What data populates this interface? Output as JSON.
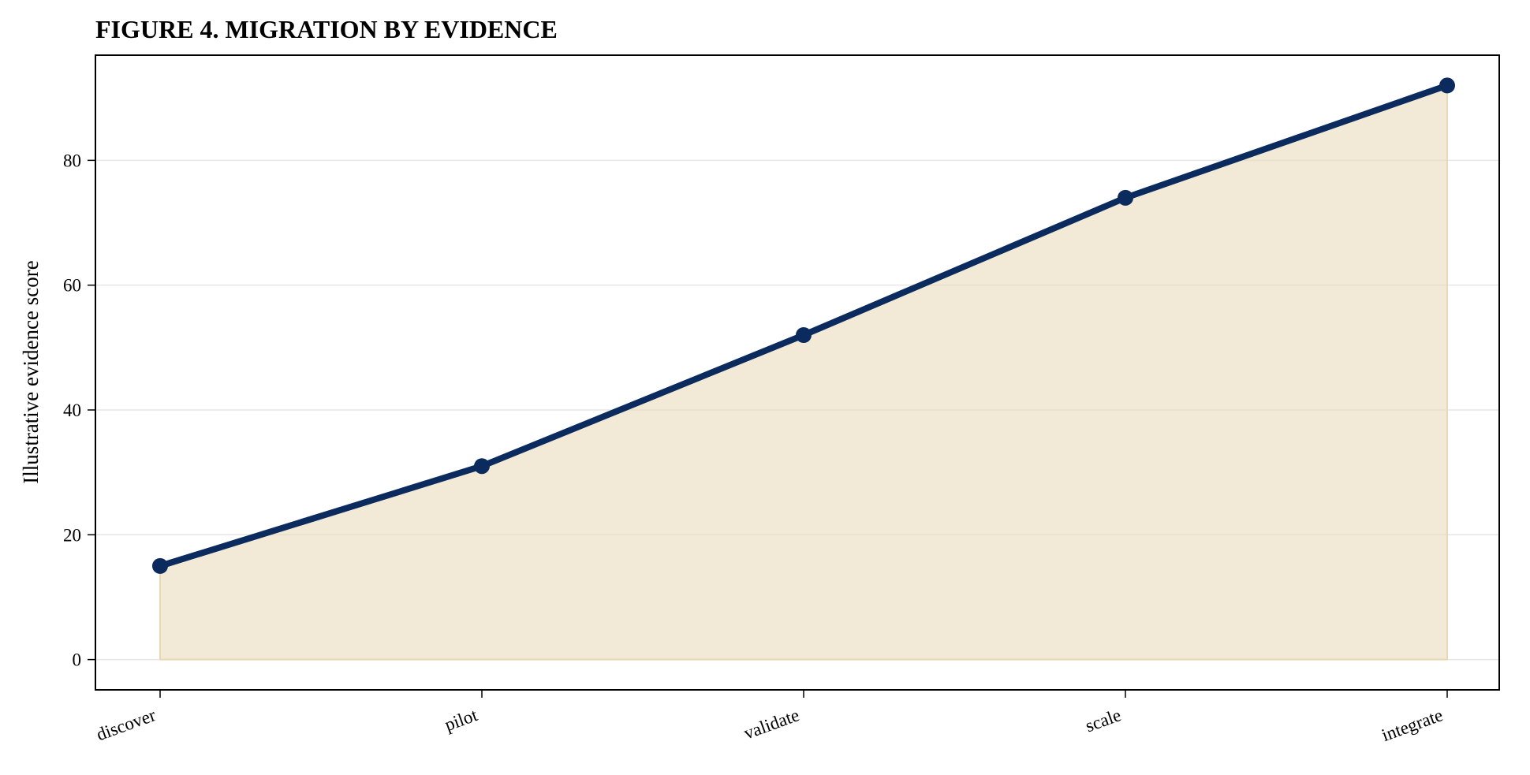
{
  "chart_data": {
    "type": "area",
    "title": "FIGURE 4. MIGRATION BY EVIDENCE",
    "xlabel": "",
    "ylabel": "Illustrative evidence score",
    "categories": [
      "discover",
      "pilot",
      "validate",
      "scale",
      "integrate"
    ],
    "series": [
      {
        "values": [
          15,
          31,
          52,
          74,
          92
        ]
      }
    ],
    "ylim": [
      -4.85,
      96.85
    ],
    "yticks": [
      0,
      20,
      40,
      60,
      80
    ],
    "grid": "horizontal",
    "colors": {
      "line": "#0b2a5e",
      "fill": "#e8d9b5",
      "grid": "#e6e6e6"
    }
  }
}
